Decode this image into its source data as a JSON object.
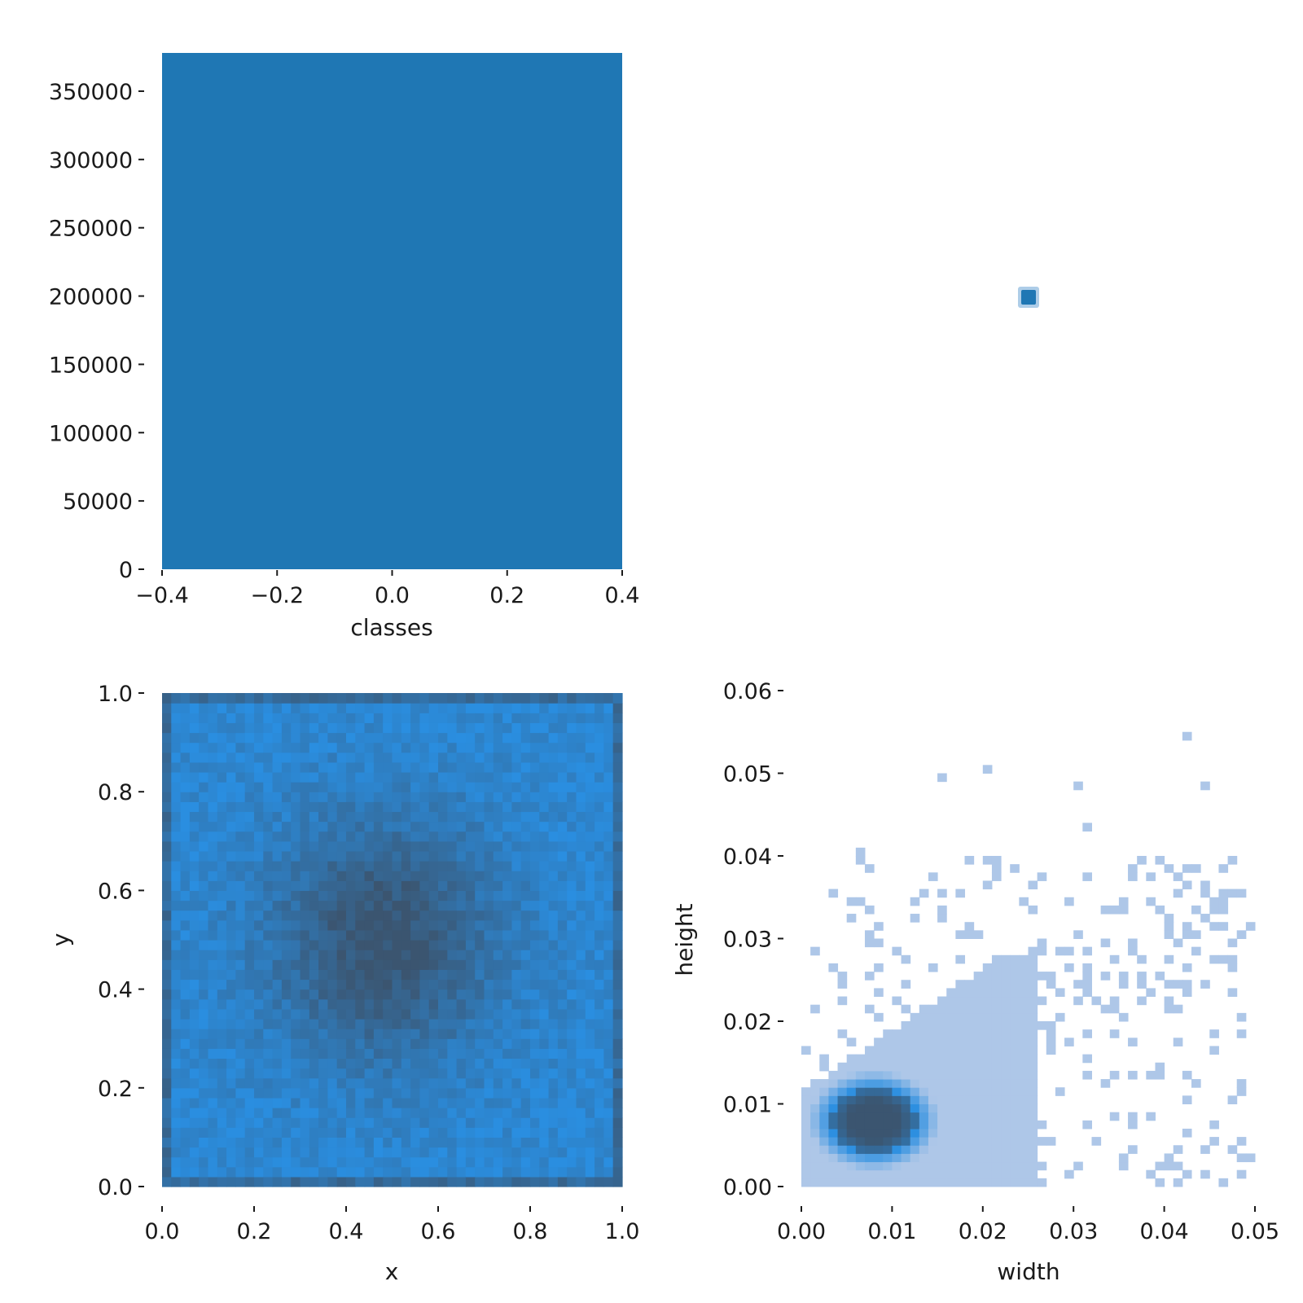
{
  "chart_data": [
    {
      "type": "bar",
      "panel": "classes-histogram",
      "xlabel": "classes",
      "ylabel": "",
      "xlim": [
        -0.4,
        0.4
      ],
      "ylim": [
        0,
        378000
      ],
      "xticks": [
        "−0.4",
        "−0.2",
        "0.0",
        "0.2",
        "0.4"
      ],
      "xtick_values": [
        -0.4,
        -0.2,
        0.0,
        0.2,
        0.4
      ],
      "yticks": [
        "0",
        "50000",
        "100000",
        "150000",
        "200000",
        "250000",
        "300000",
        "350000"
      ],
      "ytick_values": [
        0,
        50000,
        100000,
        150000,
        200000,
        250000,
        300000,
        350000
      ],
      "bars": [
        {
          "x0": -0.4,
          "x1": 0.4,
          "value": 378000
        }
      ],
      "color": "#1f77b4",
      "grid": false
    },
    {
      "type": "scatter",
      "panel": "classes-density-marker",
      "points": [
        {
          "x": 0.0,
          "y": 0.0
        }
      ],
      "color": "#1f77b4"
    },
    {
      "type": "heatmap",
      "panel": "xy-histogram",
      "xlabel": "x",
      "ylabel": "y",
      "xlim": [
        0,
        1
      ],
      "ylim": [
        0,
        1
      ],
      "xticks": [
        "0.0",
        "0.2",
        "0.4",
        "0.6",
        "0.8",
        "1.0"
      ],
      "xtick_values": [
        0,
        0.2,
        0.4,
        0.6,
        0.8,
        1.0
      ],
      "yticks": [
        "0.0",
        "0.2",
        "0.4",
        "0.6",
        "0.8",
        "1.0"
      ],
      "ytick_values": [
        0,
        0.2,
        0.4,
        0.6,
        0.8,
        1.0
      ],
      "bins": [
        50,
        50
      ],
      "peak": {
        "x": 0.48,
        "y": 0.5
      },
      "color_low": "#2a8ee0",
      "color_high": "#3b5570",
      "grid": false
    },
    {
      "type": "heatmap",
      "panel": "width-height-histogram",
      "xlabel": "width",
      "ylabel": "height",
      "xlim": [
        0,
        0.05
      ],
      "ylim": [
        0,
        0.06
      ],
      "xticks": [
        "0.00",
        "0.01",
        "0.02",
        "0.03",
        "0.04",
        "0.05"
      ],
      "xtick_values": [
        0,
        0.01,
        0.02,
        0.03,
        0.04,
        0.05
      ],
      "yticks": [
        "0.00",
        "0.01",
        "0.02",
        "0.03",
        "0.04",
        "0.05",
        "0.06"
      ],
      "ytick_values": [
        0,
        0.01,
        0.02,
        0.03,
        0.04,
        0.05,
        0.06
      ],
      "bins": [
        50,
        60
      ],
      "peak": {
        "x": 0.008,
        "y": 0.008
      },
      "color_low": "#aec7e8",
      "color_mid": "#2a8ee0",
      "color_high": "#3b5570",
      "grid": false
    }
  ]
}
